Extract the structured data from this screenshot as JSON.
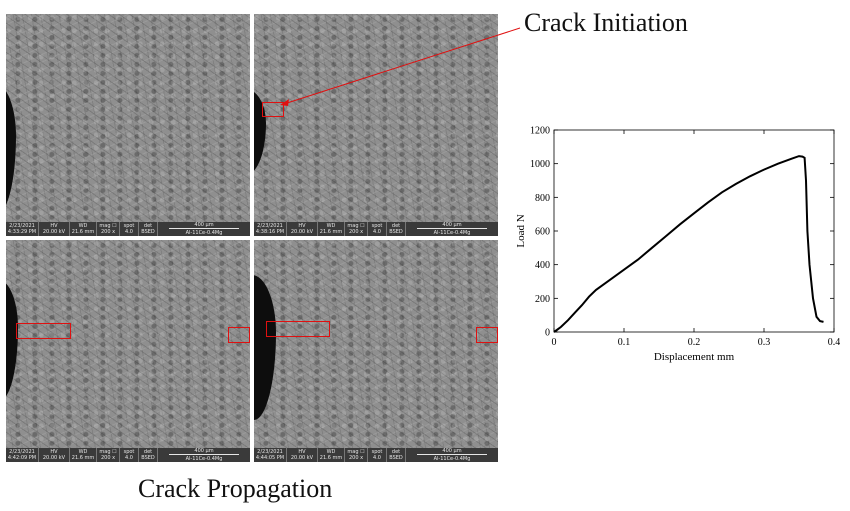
{
  "labels": {
    "crack_initiation": "Crack Initiation",
    "crack_propagation": "Crack Propagation"
  },
  "sem_panels": [
    {
      "date": "2/23/2021",
      "time": "4:33:29 PM",
      "hv": "20.00 kV",
      "wd": "21.6 mm",
      "mag": "200 x",
      "spot": "4.0",
      "det": "BSED",
      "scale": "400 µm",
      "sample": "Al-11Ce-0.4Mg"
    },
    {
      "date": "2/23/2021",
      "time": "4:38:16 PM",
      "hv": "20.00 kV",
      "wd": "21.6 mm",
      "mag": "200 x",
      "spot": "4.0",
      "det": "BSED",
      "scale": "400 µm",
      "sample": "Al-11Ce-0.4Mg"
    },
    {
      "date": "2/23/2021",
      "time": "4:42:09 PM",
      "hv": "20.00 kV",
      "wd": "21.6 mm",
      "mag": "200 x",
      "spot": "4.0",
      "det": "BSED",
      "scale": "400 µm",
      "sample": "Al-11Ce-0.4Mg"
    },
    {
      "date": "2/23/2021",
      "time": "4:44:05 PM",
      "hv": "20.00 kV",
      "wd": "21.6 mm",
      "mag": "200 x",
      "spot": "4.0",
      "det": "BSED",
      "scale": "400 µm",
      "sample": "Al-11Ce-0.4Mg"
    }
  ],
  "sem_headers": {
    "hv": "HV",
    "wd": "WD",
    "mag": "mag ☐",
    "spot": "spot",
    "det": "det"
  },
  "colors": {
    "highlight": "#e01010",
    "curve": "#000000"
  },
  "chart_data": {
    "type": "line",
    "xlabel": "Displacement mm",
    "ylabel": "Load N",
    "xlim": [
      0,
      0.4
    ],
    "ylim": [
      0,
      1200
    ],
    "xticks": [
      0,
      0.1,
      0.2,
      0.3,
      0.4
    ],
    "yticks": [
      0,
      200,
      400,
      600,
      800,
      1000,
      1200
    ],
    "x": [
      0,
      0.005,
      0.01,
      0.02,
      0.03,
      0.04,
      0.05,
      0.06,
      0.08,
      0.1,
      0.12,
      0.14,
      0.16,
      0.18,
      0.2,
      0.22,
      0.24,
      0.26,
      0.28,
      0.3,
      0.32,
      0.34,
      0.35,
      0.355,
      0.358,
      0.36,
      0.362,
      0.365,
      0.37,
      0.375,
      0.38,
      0.385
    ],
    "y": [
      0,
      15,
      30,
      70,
      115,
      160,
      210,
      250,
      310,
      370,
      430,
      500,
      570,
      640,
      705,
      770,
      830,
      880,
      925,
      965,
      1000,
      1030,
      1045,
      1042,
      1035,
      900,
      600,
      400,
      200,
      90,
      65,
      60
    ]
  }
}
